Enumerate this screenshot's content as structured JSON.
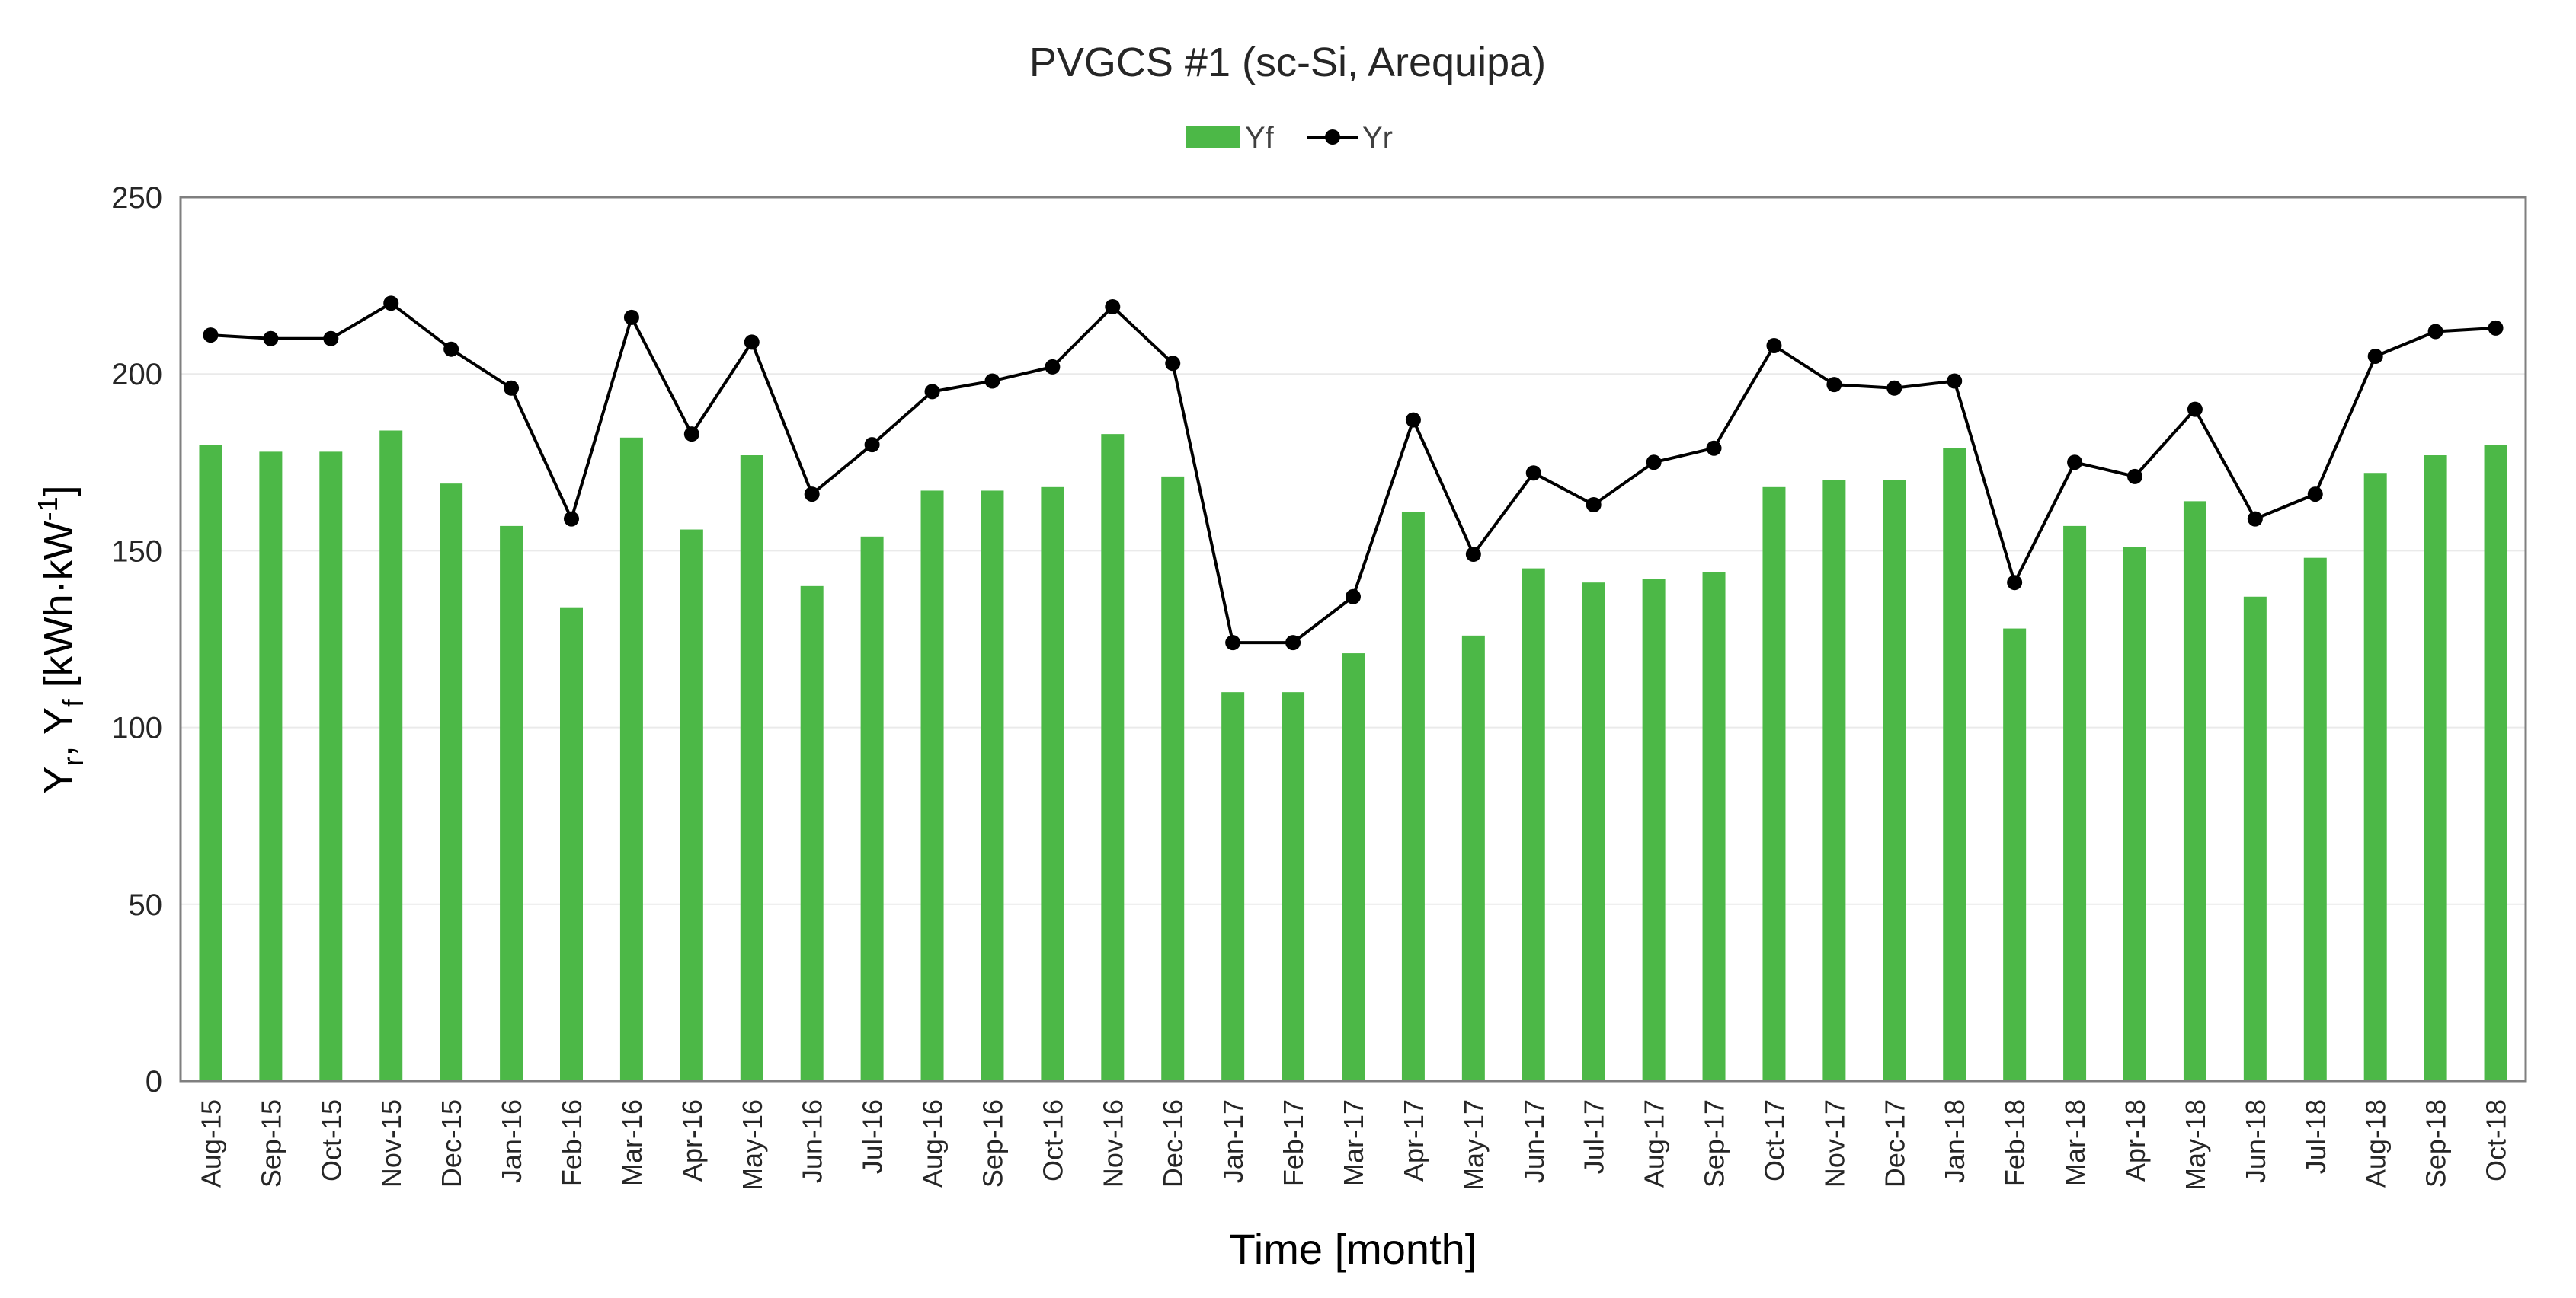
{
  "chart_data": {
    "type": "bar",
    "title": "PVGCS #1 (sc-Si, Arequipa)",
    "xlabel": "Time [month]",
    "ylabel": "Y_r,  Y_f [kWh·kW^-1]",
    "ylabel_parts": {
      "y1": "Y",
      "sub1": "r",
      "sep": ",  ",
      "y2": "Y",
      "sub2": "f",
      "open": " [kWh·kW",
      "sup": "-1",
      "close": "]"
    },
    "ylim": [
      0,
      250
    ],
    "yticks": [
      "0",
      "50",
      "100",
      "150",
      "200",
      "250"
    ],
    "grid": true,
    "legend_position": "top-center",
    "categories": [
      "Aug-15",
      "Sep-15",
      "Oct-15",
      "Nov-15",
      "Dec-15",
      "Jan-16",
      "Feb-16",
      "Mar-16",
      "Apr-16",
      "May-16",
      "Jun-16",
      "Jul-16",
      "Aug-16",
      "Sep-16",
      "Oct-16",
      "Nov-16",
      "Dec-16",
      "Jan-17",
      "Feb-17",
      "Mar-17",
      "Apr-17",
      "May-17",
      "Jun-17",
      "Jul-17",
      "Aug-17",
      "Sep-17",
      "Oct-17",
      "Nov-17",
      "Dec-17",
      "Jan-18",
      "Feb-18",
      "Mar-18",
      "Apr-18",
      "May-18",
      "Jun-18",
      "Jul-18",
      "Aug-18",
      "Sep-18",
      "Oct-18"
    ],
    "series": [
      {
        "name": "Yf",
        "kind": "bar",
        "color": "#4cb847",
        "values": [
          180,
          178,
          178,
          184,
          169,
          157,
          134,
          182,
          156,
          177,
          140,
          154,
          167,
          167,
          168,
          183,
          171,
          110,
          110,
          121,
          161,
          126,
          145,
          141,
          142,
          144,
          168,
          170,
          170,
          179,
          128,
          157,
          151,
          164,
          137,
          148,
          172,
          177,
          180
        ]
      },
      {
        "name": "Yr",
        "kind": "line",
        "color": "#000000",
        "values": [
          211,
          210,
          210,
          220,
          207,
          196,
          159,
          216,
          183,
          209,
          166,
          180,
          195,
          198,
          202,
          219,
          203,
          124,
          124,
          137,
          187,
          149,
          172,
          163,
          175,
          179,
          208,
          197,
          196,
          198,
          141,
          175,
          171,
          190,
          159,
          166,
          205,
          212,
          213
        ]
      }
    ]
  }
}
